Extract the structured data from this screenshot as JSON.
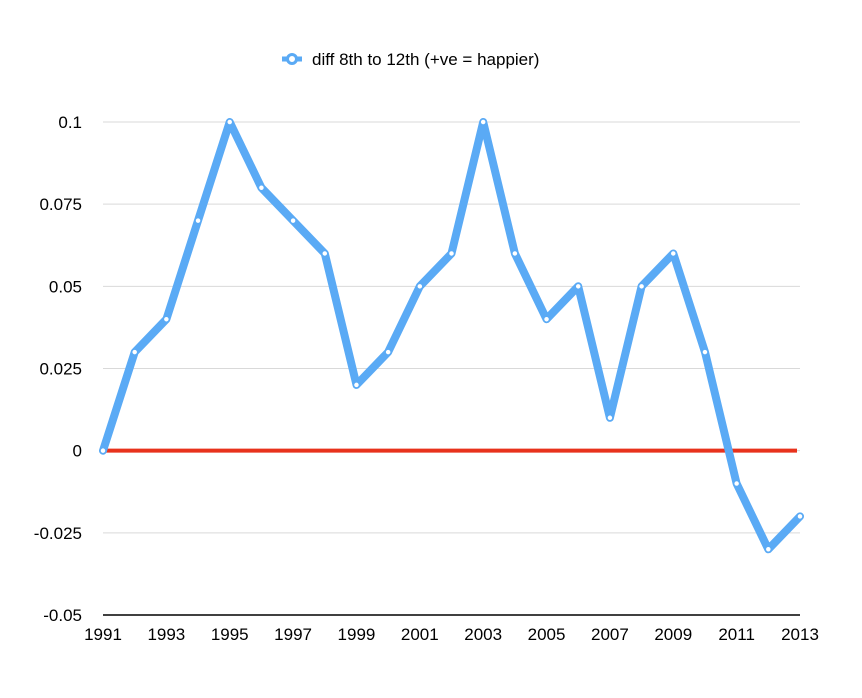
{
  "chart_data": {
    "type": "line",
    "title": "",
    "xlabel": "",
    "ylabel": "",
    "x": [
      1991,
      1992,
      1993,
      1994,
      1995,
      1996,
      1997,
      1998,
      1999,
      2000,
      2001,
      2002,
      2003,
      2004,
      2005,
      2006,
      2007,
      2008,
      2009,
      2010,
      2011,
      2012,
      2013
    ],
    "series": [
      {
        "name": "diff 8th to 12th (+ve = happier)",
        "color": "#5aaaf5",
        "values": [
          0,
          0.03,
          0.04,
          0.07,
          0.1,
          0.08,
          0.07,
          0.06,
          0.02,
          0.03,
          0.05,
          0.06,
          0.1,
          0.06,
          0.04,
          0.05,
          0.01,
          0.05,
          0.06,
          0.03,
          -0.01,
          -0.03,
          -0.02
        ]
      }
    ],
    "reference_line": {
      "y": 0,
      "color": "#e8321c"
    },
    "xlim": [
      1991,
      2013
    ],
    "ylim": [
      -0.05,
      0.1
    ],
    "x_ticks": [
      "1991",
      "1993",
      "1995",
      "1997",
      "1999",
      "2001",
      "2003",
      "2005",
      "2007",
      "2009",
      "2011",
      "2013"
    ],
    "y_ticks": [
      "0.1",
      "0.075",
      "0.05",
      "0.025",
      "0",
      "-0.025",
      "-0.05"
    ],
    "grid": true,
    "legend_position": "top"
  }
}
